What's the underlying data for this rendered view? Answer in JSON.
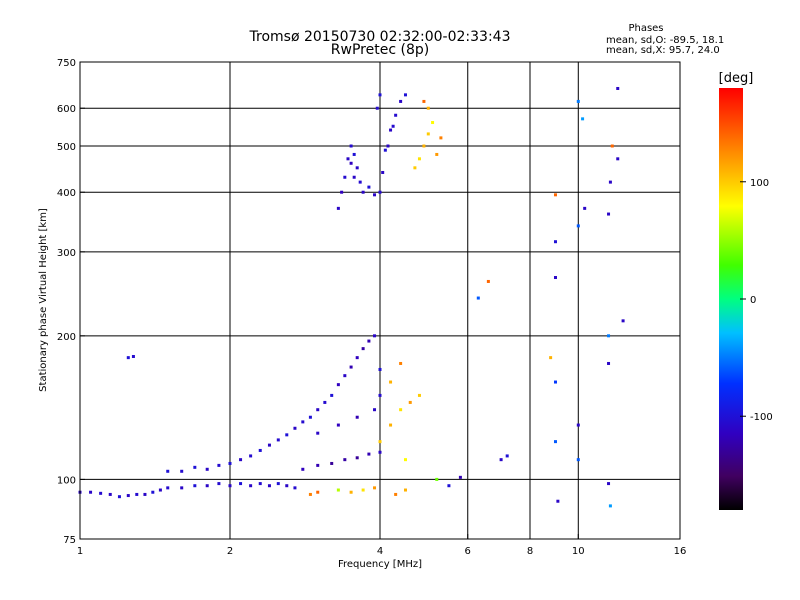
{
  "header": {
    "title_line1": "Tromsø 20150730 02:32:00-02:33:43",
    "title_line2": "RwPretec (8p)"
  },
  "phases": {
    "heading": "Phases",
    "o_line": "mean, sd,O: -89.5, 18.1",
    "x_line": "mean, sd,X:  95.7, 24.0"
  },
  "colorbar": {
    "label": "[deg]",
    "ticks": [
      {
        "value": 100,
        "label": "100"
      },
      {
        "value": 0,
        "label": "0"
      },
      {
        "value": -100,
        "label": "-100"
      }
    ],
    "range": [
      -180,
      180
    ]
  },
  "chart_data": {
    "type": "scatter",
    "title": "Tromsø 20150730 02:32:00-02:33:43",
    "subtitle": "RwPretec (8p)",
    "xlabel": "Frequency [MHz]",
    "ylabel": "Stationary phase Virtual Height [km]",
    "xscale": "log",
    "yscale": "log",
    "xlim": [
      1,
      16
    ],
    "ylim": [
      75,
      750
    ],
    "xticks": [
      {
        "value": 1,
        "label": "1"
      },
      {
        "value": 2,
        "label": "2"
      },
      {
        "value": 4,
        "label": "4"
      },
      {
        "value": 6,
        "label": "6"
      },
      {
        "value": 8,
        "label": "8"
      },
      {
        "value": 10,
        "label": "10"
      },
      {
        "value": 16,
        "label": "16"
      }
    ],
    "yticks": [
      {
        "value": 75,
        "label": "75"
      },
      {
        "value": 100,
        "label": "100"
      },
      {
        "value": 200,
        "label": "200"
      },
      {
        "value": 300,
        "label": "300"
      },
      {
        "value": 400,
        "label": "400"
      },
      {
        "value": 500,
        "label": "500"
      },
      {
        "value": 600,
        "label": "600"
      },
      {
        "value": 750,
        "label": "750"
      }
    ],
    "x_gridlines": [
      2,
      4,
      6,
      8,
      10
    ],
    "y_gridlines": [
      100,
      200,
      300,
      400,
      500,
      600
    ],
    "color_scale": "phase [deg], -180 to 180",
    "points": [
      {
        "x": 1.0,
        "y": 94,
        "c": -110
      },
      {
        "x": 1.05,
        "y": 94,
        "c": -110
      },
      {
        "x": 1.1,
        "y": 93.5,
        "c": -105
      },
      {
        "x": 1.15,
        "y": 93,
        "c": -110
      },
      {
        "x": 1.2,
        "y": 92,
        "c": -100
      },
      {
        "x": 1.25,
        "y": 92.5,
        "c": -110
      },
      {
        "x": 1.3,
        "y": 93,
        "c": -105
      },
      {
        "x": 1.35,
        "y": 93,
        "c": -110
      },
      {
        "x": 1.4,
        "y": 94,
        "c": -100
      },
      {
        "x": 1.45,
        "y": 95,
        "c": -110
      },
      {
        "x": 1.5,
        "y": 96,
        "c": -105
      },
      {
        "x": 1.6,
        "y": 96,
        "c": -110
      },
      {
        "x": 1.7,
        "y": 97,
        "c": -100
      },
      {
        "x": 1.8,
        "y": 97,
        "c": -110
      },
      {
        "x": 1.9,
        "y": 98,
        "c": -105
      },
      {
        "x": 2.0,
        "y": 97,
        "c": -110
      },
      {
        "x": 2.1,
        "y": 98,
        "c": -100
      },
      {
        "x": 2.2,
        "y": 97,
        "c": -110
      },
      {
        "x": 2.3,
        "y": 98,
        "c": -105
      },
      {
        "x": 2.4,
        "y": 97,
        "c": -110
      },
      {
        "x": 2.5,
        "y": 98,
        "c": -100
      },
      {
        "x": 2.6,
        "y": 97,
        "c": -110
      },
      {
        "x": 2.7,
        "y": 96,
        "c": -105
      },
      {
        "x": 1.25,
        "y": 180,
        "c": -100
      },
      {
        "x": 1.28,
        "y": 181,
        "c": -105
      },
      {
        "x": 1.5,
        "y": 104,
        "c": -100
      },
      {
        "x": 1.6,
        "y": 104,
        "c": -105
      },
      {
        "x": 1.7,
        "y": 106,
        "c": -100
      },
      {
        "x": 1.8,
        "y": 105,
        "c": -110
      },
      {
        "x": 1.9,
        "y": 107,
        "c": -105
      },
      {
        "x": 2.0,
        "y": 108,
        "c": -100
      },
      {
        "x": 2.1,
        "y": 110,
        "c": -110
      },
      {
        "x": 2.2,
        "y": 112,
        "c": -105
      },
      {
        "x": 2.3,
        "y": 115,
        "c": -100
      },
      {
        "x": 2.4,
        "y": 118,
        "c": -110
      },
      {
        "x": 2.5,
        "y": 121,
        "c": -105
      },
      {
        "x": 2.6,
        "y": 124,
        "c": -100
      },
      {
        "x": 2.7,
        "y": 128,
        "c": -110
      },
      {
        "x": 2.8,
        "y": 132,
        "c": -105
      },
      {
        "x": 2.9,
        "y": 135,
        "c": -100
      },
      {
        "x": 3.0,
        "y": 140,
        "c": -110
      },
      {
        "x": 3.1,
        "y": 145,
        "c": -105
      },
      {
        "x": 3.2,
        "y": 150,
        "c": -100
      },
      {
        "x": 3.3,
        "y": 158,
        "c": -115
      },
      {
        "x": 3.4,
        "y": 165,
        "c": -110
      },
      {
        "x": 3.5,
        "y": 172,
        "c": -120
      },
      {
        "x": 3.6,
        "y": 180,
        "c": -115
      },
      {
        "x": 3.7,
        "y": 188,
        "c": -125
      },
      {
        "x": 3.8,
        "y": 195,
        "c": -120
      },
      {
        "x": 3.9,
        "y": 200,
        "c": -110
      },
      {
        "x": 2.8,
        "y": 105,
        "c": -115
      },
      {
        "x": 3.0,
        "y": 107,
        "c": -120
      },
      {
        "x": 3.2,
        "y": 108,
        "c": -130
      },
      {
        "x": 3.4,
        "y": 110,
        "c": -125
      },
      {
        "x": 3.6,
        "y": 111,
        "c": -130
      },
      {
        "x": 3.8,
        "y": 113,
        "c": -120
      },
      {
        "x": 4.0,
        "y": 114,
        "c": -110
      },
      {
        "x": 3.0,
        "y": 125,
        "c": -110
      },
      {
        "x": 3.3,
        "y": 130,
        "c": -115
      },
      {
        "x": 3.6,
        "y": 135,
        "c": -120
      },
      {
        "x": 3.9,
        "y": 140,
        "c": -110
      },
      {
        "x": 4.0,
        "y": 150,
        "c": -105
      },
      {
        "x": 4.0,
        "y": 170,
        "c": -100
      },
      {
        "x": 2.9,
        "y": 93,
        "c": 130
      },
      {
        "x": 3.0,
        "y": 94,
        "c": 140
      },
      {
        "x": 3.3,
        "y": 95,
        "c": 60
      },
      {
        "x": 3.5,
        "y": 94,
        "c": 110
      },
      {
        "x": 3.7,
        "y": 95,
        "c": 90
      },
      {
        "x": 3.9,
        "y": 96,
        "c": 120
      },
      {
        "x": 4.3,
        "y": 93,
        "c": 130
      },
      {
        "x": 4.5,
        "y": 95,
        "c": 110
      },
      {
        "x": 4.0,
        "y": 120,
        "c": 100
      },
      {
        "x": 4.2,
        "y": 130,
        "c": 110
      },
      {
        "x": 4.4,
        "y": 140,
        "c": 90
      },
      {
        "x": 4.6,
        "y": 145,
        "c": 120
      },
      {
        "x": 4.8,
        "y": 150,
        "c": 100
      },
      {
        "x": 4.5,
        "y": 110,
        "c": 80
      },
      {
        "x": 4.2,
        "y": 160,
        "c": 110
      },
      {
        "x": 4.4,
        "y": 175,
        "c": 130
      },
      {
        "x": 5.2,
        "y": 100,
        "c": 40
      },
      {
        "x": 5.5,
        "y": 97,
        "c": -100
      },
      {
        "x": 5.8,
        "y": 101,
        "c": -120
      },
      {
        "x": 3.3,
        "y": 370,
        "c": -110
      },
      {
        "x": 3.35,
        "y": 400,
        "c": -115
      },
      {
        "x": 3.4,
        "y": 430,
        "c": -105
      },
      {
        "x": 3.45,
        "y": 470,
        "c": -110
      },
      {
        "x": 3.5,
        "y": 500,
        "c": -105
      },
      {
        "x": 3.55,
        "y": 480,
        "c": -100
      },
      {
        "x": 3.6,
        "y": 450,
        "c": -110
      },
      {
        "x": 3.65,
        "y": 420,
        "c": -105
      },
      {
        "x": 3.7,
        "y": 400,
        "c": -110
      },
      {
        "x": 3.8,
        "y": 410,
        "c": -100
      },
      {
        "x": 3.9,
        "y": 395,
        "c": -110
      },
      {
        "x": 4.0,
        "y": 400,
        "c": -105
      },
      {
        "x": 4.05,
        "y": 440,
        "c": -110
      },
      {
        "x": 4.1,
        "y": 490,
        "c": -100
      },
      {
        "x": 4.2,
        "y": 540,
        "c": -110
      },
      {
        "x": 4.3,
        "y": 580,
        "c": -105
      },
      {
        "x": 4.4,
        "y": 620,
        "c": -110
      },
      {
        "x": 4.5,
        "y": 640,
        "c": -100
      },
      {
        "x": 3.5,
        "y": 460,
        "c": -115
      },
      {
        "x": 3.55,
        "y": 430,
        "c": -110
      },
      {
        "x": 3.95,
        "y": 600,
        "c": -105
      },
      {
        "x": 4.0,
        "y": 640,
        "c": -100
      },
      {
        "x": 4.15,
        "y": 500,
        "c": -110
      },
      {
        "x": 4.25,
        "y": 550,
        "c": -105
      },
      {
        "x": 4.7,
        "y": 450,
        "c": 100
      },
      {
        "x": 4.8,
        "y": 470,
        "c": 90
      },
      {
        "x": 4.9,
        "y": 500,
        "c": 110
      },
      {
        "x": 5.0,
        "y": 530,
        "c": 100
      },
      {
        "x": 5.1,
        "y": 560,
        "c": 80
      },
      {
        "x": 5.0,
        "y": 600,
        "c": 110
      },
      {
        "x": 5.2,
        "y": 480,
        "c": 120
      },
      {
        "x": 5.3,
        "y": 520,
        "c": 130
      },
      {
        "x": 4.9,
        "y": 620,
        "c": 140
      },
      {
        "x": 6.3,
        "y": 240,
        "c": -60
      },
      {
        "x": 6.6,
        "y": 260,
        "c": 140
      },
      {
        "x": 7.0,
        "y": 110,
        "c": -110
      },
      {
        "x": 7.2,
        "y": 112,
        "c": -100
      },
      {
        "x": 8.8,
        "y": 180,
        "c": 110
      },
      {
        "x": 9.0,
        "y": 160,
        "c": -70
      },
      {
        "x": 9.0,
        "y": 120,
        "c": -60
      },
      {
        "x": 9.1,
        "y": 90,
        "c": -110
      },
      {
        "x": 9.0,
        "y": 265,
        "c": -110
      },
      {
        "x": 9.0,
        "y": 315,
        "c": -100
      },
      {
        "x": 9.0,
        "y": 395,
        "c": 140
      },
      {
        "x": 10.0,
        "y": 110,
        "c": -60
      },
      {
        "x": 10.0,
        "y": 130,
        "c": -110
      },
      {
        "x": 10.0,
        "y": 340,
        "c": -60
      },
      {
        "x": 10.0,
        "y": 620,
        "c": -50
      },
      {
        "x": 10.2,
        "y": 570,
        "c": -40
      },
      {
        "x": 10.3,
        "y": 370,
        "c": -110
      },
      {
        "x": 11.5,
        "y": 98,
        "c": -110
      },
      {
        "x": 11.6,
        "y": 88,
        "c": -40
      },
      {
        "x": 11.5,
        "y": 175,
        "c": -110
      },
      {
        "x": 11.5,
        "y": 200,
        "c": -50
      },
      {
        "x": 11.6,
        "y": 420,
        "c": -110
      },
      {
        "x": 11.7,
        "y": 500,
        "c": 140
      },
      {
        "x": 11.5,
        "y": 360,
        "c": -110
      },
      {
        "x": 12.0,
        "y": 470,
        "c": -110
      },
      {
        "x": 12.0,
        "y": 660,
        "c": -110
      },
      {
        "x": 12.3,
        "y": 215,
        "c": -110
      }
    ]
  }
}
